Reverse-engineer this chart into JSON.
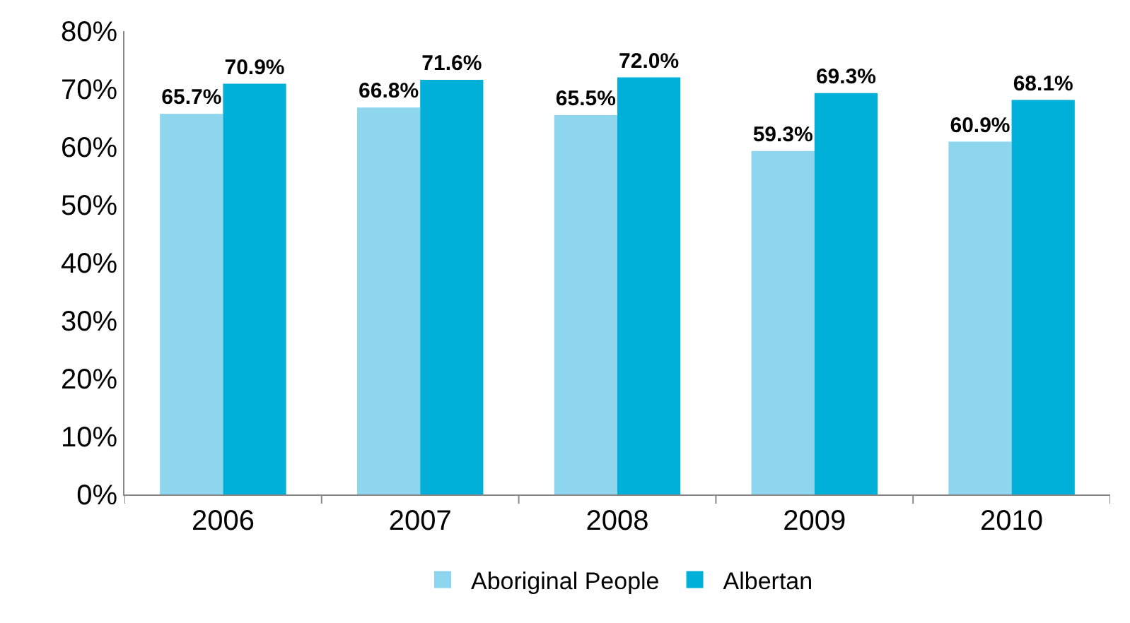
{
  "chart_data": {
    "type": "bar",
    "categories": [
      "2006",
      "2007",
      "2008",
      "2009",
      "2010"
    ],
    "series": [
      {
        "name": "Aboriginal People",
        "color": "#8dd6ed",
        "values": [
          65.7,
          66.8,
          65.5,
          59.3,
          60.9
        ],
        "value_labels": [
          "65.7%",
          "66.8%",
          "65.5%",
          "59.3%",
          "60.9%"
        ]
      },
      {
        "name": "Albertan",
        "color": "#00b0d9",
        "values": [
          70.9,
          71.6,
          72.0,
          69.3,
          68.1
        ],
        "value_labels": [
          "70.9%",
          "71.6%",
          "72.0%",
          "69.3%",
          "68.1%"
        ]
      }
    ],
    "ylim": [
      0,
      80
    ],
    "yticks": [
      {
        "value": 0,
        "label": "0%"
      },
      {
        "value": 10,
        "label": "10%"
      },
      {
        "value": 20,
        "label": "20%"
      },
      {
        "value": 30,
        "label": "30%"
      },
      {
        "value": 40,
        "label": "40%"
      },
      {
        "value": 50,
        "label": "50%"
      },
      {
        "value": 60,
        "label": "60%"
      },
      {
        "value": 70,
        "label": "70%"
      },
      {
        "value": 80,
        "label": "80%"
      }
    ],
    "legend": "bottom"
  }
}
